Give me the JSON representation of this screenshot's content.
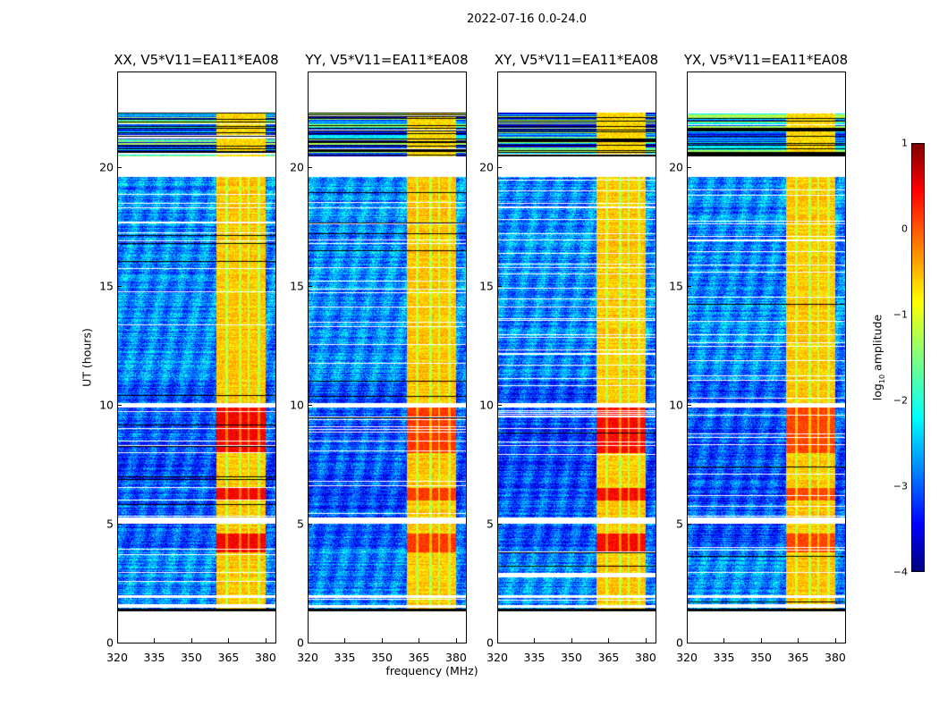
{
  "chart_data": {
    "type": "heatmap",
    "title": "2022-07-16 0.0-24.0",
    "panels": [
      {
        "title": "XX, V5*V11=EA11*EA08",
        "band_peak_log_amp": 0.4
      },
      {
        "title": "YY, V5*V11=EA11*EA08",
        "band_peak_log_amp": 0.1
      },
      {
        "title": "XY, V5*V11=EA11*EA08",
        "band_peak_log_amp": 0.35
      },
      {
        "title": "YX, V5*V11=EA11*EA08",
        "band_peak_log_amp": 0.05
      }
    ],
    "xlabel": "frequency (MHz)",
    "ylabel": "UT (hours)",
    "xlim": [
      320,
      384
    ],
    "ylim": [
      0,
      24
    ],
    "xticks": [
      "320",
      "335",
      "350",
      "365",
      "380"
    ],
    "yticks": [
      "0",
      "5",
      "10",
      "15",
      "20"
    ],
    "colorbar": {
      "label": "log",
      "label_sub": "10",
      "label_rest": " amplitude",
      "range": [
        -4,
        1
      ],
      "ticks": [
        "1",
        "0",
        "−1",
        "−2",
        "−3",
        "−4"
      ],
      "colormap": "jet"
    },
    "features": {
      "data_hours": [
        1.35,
        22.3
      ],
      "background_log_amp": -2.7,
      "bright_band_mhz": [
        360,
        380
      ],
      "bright_band_log_amp": -0.6,
      "enhanced_hours": [
        [
          3.8,
          4.6
        ],
        [
          6.0,
          6.5
        ],
        [
          8.0,
          10.0
        ]
      ],
      "gap_hours": [
        [
          1.5,
          1.6
        ],
        [
          1.9,
          2.0
        ],
        [
          5.03,
          5.29
        ],
        [
          9.9,
          10.1
        ],
        [
          19.6,
          20.45
        ]
      ],
      "striped_hours": [
        20.45,
        22.3
      ]
    }
  }
}
